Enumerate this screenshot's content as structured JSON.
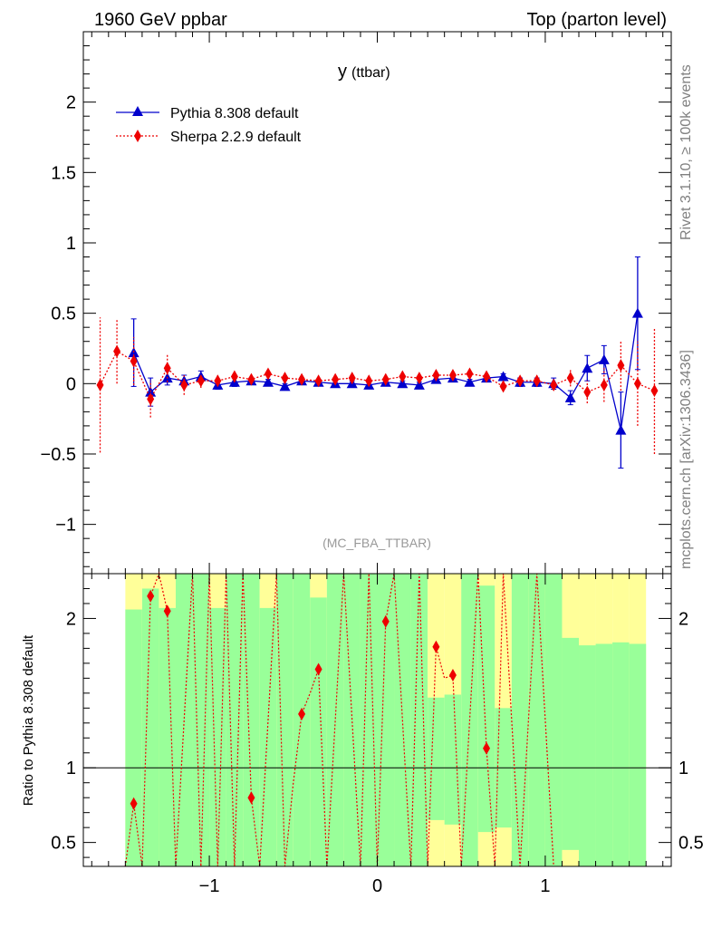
{
  "header": {
    "left": "1960 GeV ppbar",
    "right": "Top (parton level)"
  },
  "side_text": {
    "upper": "Rivet 3.1.10, ≥ 100k events",
    "lower": "mcplots.cern.ch [arXiv:1306.3436]"
  },
  "chart_data": [
    {
      "type": "line",
      "title_main": "y",
      "title_sub": "(ttbar)",
      "annotation": "(MC_FBA_TTBAR)",
      "xlabel": "",
      "ylabel": "",
      "xlim": [
        -1.75,
        1.75
      ],
      "ylim": [
        -1.35,
        2.5
      ],
      "x_ticks": [
        -1,
        0,
        1
      ],
      "x_tick_labels": [
        "−1",
        "0",
        "1"
      ],
      "y_ticks": [
        -1,
        -0.5,
        0,
        0.5,
        1,
        1.5,
        2
      ],
      "y_tick_labels": [
        "−1",
        "−0.5",
        "0",
        "0.5",
        "1",
        "1.5",
        "2"
      ],
      "legend_position": "top-left",
      "series": [
        {
          "name": "Pythia 8.308 default",
          "color": "#0000cc",
          "marker": "triangle",
          "line": "solid",
          "x": [
            -1.45,
            -1.35,
            -1.25,
            -1.15,
            -1.05,
            -0.95,
            -0.85,
            -0.75,
            -0.65,
            -0.55,
            -0.45,
            -0.35,
            -0.25,
            -0.15,
            -0.05,
            0.05,
            0.15,
            0.25,
            0.35,
            0.45,
            0.55,
            0.65,
            0.75,
            0.85,
            0.95,
            1.05,
            1.15,
            1.25,
            1.35,
            1.45,
            1.55
          ],
          "y": [
            0.22,
            -0.06,
            0.04,
            0.02,
            0.05,
            -0.01,
            0.01,
            0.02,
            0.01,
            -0.02,
            0.02,
            0.01,
            0.0,
            0.0,
            -0.01,
            0.01,
            0.0,
            -0.01,
            0.03,
            0.04,
            0.01,
            0.04,
            0.05,
            0.01,
            0.01,
            0.0,
            -0.1,
            0.11,
            0.17,
            -0.33,
            0.5
          ],
          "err": [
            0.24,
            0.1,
            0.05,
            0.04,
            0.04,
            0.03,
            0.03,
            0.02,
            0.02,
            0.02,
            0.02,
            0.02,
            0.02,
            0.02,
            0.02,
            0.02,
            0.02,
            0.02,
            0.02,
            0.02,
            0.02,
            0.02,
            0.02,
            0.03,
            0.03,
            0.04,
            0.05,
            0.09,
            0.1,
            0.27,
            0.4
          ]
        },
        {
          "name": "Sherpa 2.2.9 default",
          "color": "#ee0000",
          "marker": "diamond",
          "line": "dotted",
          "x": [
            -1.65,
            -1.55,
            -1.45,
            -1.35,
            -1.25,
            -1.15,
            -1.05,
            -0.95,
            -0.85,
            -0.75,
            -0.65,
            -0.55,
            -0.45,
            -0.35,
            -0.25,
            -0.15,
            -0.05,
            0.05,
            0.15,
            0.25,
            0.35,
            0.45,
            0.55,
            0.65,
            0.75,
            0.85,
            0.95,
            1.05,
            1.15,
            1.25,
            1.35,
            1.45,
            1.55,
            1.65
          ],
          "y": [
            -0.01,
            0.23,
            0.16,
            -0.11,
            0.11,
            -0.01,
            0.02,
            0.02,
            0.05,
            0.03,
            0.07,
            0.04,
            0.03,
            0.02,
            0.03,
            0.04,
            0.02,
            0.03,
            0.05,
            0.04,
            0.06,
            0.06,
            0.07,
            0.05,
            -0.02,
            0.02,
            0.02,
            -0.01,
            0.04,
            -0.06,
            -0.01,
            0.13,
            0.0,
            -0.05
          ],
          "err": [
            0.48,
            0.23,
            0.17,
            0.13,
            0.1,
            0.07,
            0.05,
            0.04,
            0.03,
            0.03,
            0.03,
            0.03,
            0.02,
            0.02,
            0.02,
            0.02,
            0.02,
            0.02,
            0.02,
            0.02,
            0.02,
            0.02,
            0.02,
            0.02,
            0.03,
            0.03,
            0.04,
            0.04,
            0.06,
            0.08,
            0.12,
            0.18,
            0.3,
            0.45
          ]
        }
      ]
    },
    {
      "type": "line",
      "ylabel": "Ratio to Pythia 8.308 default",
      "xlim": [
        -1.75,
        1.75
      ],
      "ylim": [
        0.34,
        2.3
      ],
      "x_ticks": [
        -1,
        0,
        1
      ],
      "x_tick_labels": [
        "−1",
        "0",
        "1"
      ],
      "y_ticks": [
        0.5,
        1,
        2
      ],
      "y_tick_labels": [
        "0.5",
        "1",
        "2"
      ],
      "reference_line": 1,
      "band_colors": {
        "one_sigma": "#99ff99",
        "two_sigma": "#ffff99"
      },
      "bands": {
        "x_low": [
          -1.5,
          -1.4,
          -1.3,
          -1.2,
          -1.1,
          -1.0,
          -0.9,
          -0.8,
          -0.7,
          -0.6,
          -0.5,
          -0.4,
          -0.3,
          -0.2,
          -0.1,
          0.0,
          0.1,
          0.2,
          0.3,
          0.4,
          0.5,
          0.6,
          0.7,
          0.8,
          0.9,
          1.0,
          1.1,
          1.2,
          1.3,
          1.4,
          1.5
        ],
        "x_high": [
          -1.4,
          -1.3,
          -1.2,
          -1.1,
          -1.0,
          -0.9,
          -0.8,
          -0.7,
          -0.6,
          -0.5,
          -0.4,
          -0.3,
          -0.2,
          -0.1,
          0.0,
          0.1,
          0.2,
          0.3,
          0.4,
          0.5,
          0.6,
          0.7,
          0.8,
          0.9,
          1.0,
          1.1,
          1.2,
          1.3,
          1.4,
          1.5,
          1.6
        ],
        "green_low": [
          0.3,
          0.3,
          0.3,
          0.3,
          0.3,
          0.3,
          0.3,
          0.3,
          0.3,
          0.3,
          0.3,
          0.3,
          0.3,
          0.3,
          0.3,
          0.3,
          0.3,
          0.3,
          0.65,
          0.62,
          0.3,
          0.57,
          0.6,
          0.3,
          0.3,
          0.3,
          0.45,
          0.3,
          0.3,
          0.3,
          0.3
        ],
        "green_high": [
          2.06,
          2.2,
          2.07,
          2.3,
          2.3,
          2.07,
          2.3,
          2.3,
          2.07,
          2.3,
          2.3,
          2.14,
          2.3,
          2.3,
          2.3,
          2.3,
          2.3,
          2.3,
          1.47,
          1.49,
          2.3,
          2.22,
          1.4,
          2.3,
          2.3,
          2.3,
          1.87,
          1.82,
          1.83,
          1.84,
          1.83
        ],
        "yellow_low": [
          0.3,
          0.3,
          0.3,
          0.3,
          0.3,
          0.3,
          0.3,
          0.3,
          0.3,
          0.3,
          0.3,
          0.3,
          0.3,
          0.3,
          0.3,
          0.3,
          0.3,
          0.3,
          0.3,
          0.3,
          0.3,
          0.3,
          0.3,
          0.3,
          0.3,
          0.3,
          0.3,
          0.3,
          0.3,
          0.3,
          0.3
        ],
        "yellow_high": [
          2.3,
          2.3,
          2.3,
          2.3,
          2.3,
          2.3,
          2.3,
          2.3,
          2.3,
          2.3,
          2.3,
          2.3,
          2.3,
          2.3,
          2.3,
          2.3,
          2.3,
          2.3,
          2.3,
          2.3,
          2.3,
          2.3,
          2.3,
          2.3,
          2.3,
          2.3,
          2.3,
          2.3,
          2.3,
          2.3,
          2.3
        ]
      },
      "series": [
        {
          "name": "Sherpa 2.2.9 default",
          "color": "#ee0000",
          "marker": "diamond",
          "points_x": [
            -1.45,
            -1.35,
            -1.25,
            -0.75,
            -0.45,
            -0.35,
            0.05,
            0.35,
            0.45,
            0.65
          ],
          "points_y": [
            0.76,
            2.15,
            2.05,
            0.8,
            1.36,
            1.66,
            1.98,
            1.81,
            1.62,
            1.13
          ],
          "zigzag_x": [
            -1.5,
            -1.45,
            -1.4,
            -1.35,
            -1.3,
            -1.25,
            -1.2,
            -1.1,
            -1.05,
            -1.0,
            -0.95,
            -0.9,
            -0.85,
            -0.8,
            -0.75,
            -0.7,
            -0.6,
            -0.55,
            -0.5,
            -0.45,
            -0.4,
            -0.35,
            -0.3,
            -0.2,
            -0.1,
            -0.05,
            0.0,
            0.05,
            0.1,
            0.2,
            0.25,
            0.3,
            0.35,
            0.4,
            0.45,
            0.5,
            0.6,
            0.65,
            0.7,
            0.75,
            0.85,
            0.95,
            1.05
          ],
          "zigzag_y": [
            0.2,
            0.76,
            0.2,
            2.15,
            2.3,
            2.05,
            0.2,
            2.3,
            0.2,
            2.3,
            0.2,
            2.3,
            0.2,
            2.3,
            0.8,
            0.2,
            2.3,
            0.2,
            0.9,
            1.36,
            1.5,
            1.66,
            0.2,
            2.3,
            0.2,
            2.3,
            0.2,
            1.98,
            2.3,
            0.2,
            2.3,
            0.2,
            1.81,
            1.6,
            1.62,
            0.2,
            2.3,
            1.13,
            0.2,
            2.3,
            0.2,
            2.3,
            0.2
          ]
        }
      ]
    }
  ]
}
